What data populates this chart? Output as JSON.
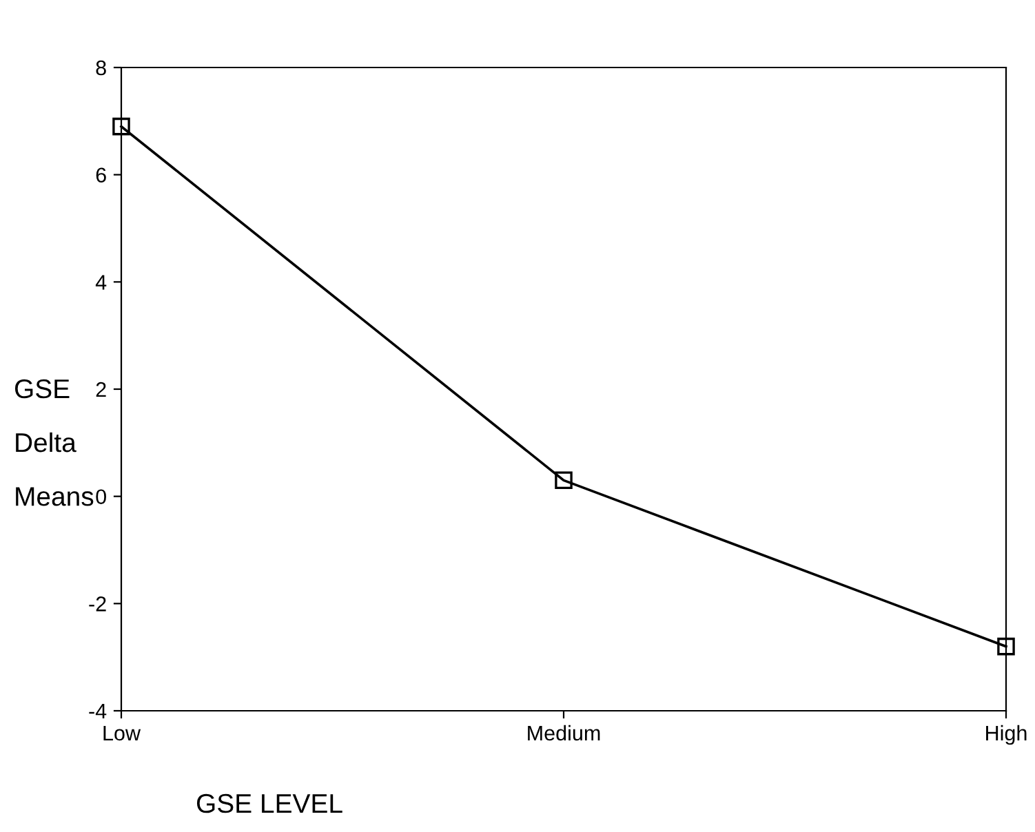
{
  "chart_data": {
    "type": "line",
    "categories": [
      "Low",
      "Medium",
      "High"
    ],
    "series": [
      {
        "color": "#000000",
        "values": [
          6.9,
          0.3,
          -2.8
        ]
      }
    ],
    "xlabel": "GSE LEVEL",
    "ylabel": "GSE Delta Means",
    "ylim": [
      -4,
      8
    ],
    "yticks": [
      -4,
      -2,
      0,
      2,
      4,
      6,
      8
    ],
    "marker": "square",
    "line_style": "solid",
    "grid": false,
    "legend": false
  }
}
